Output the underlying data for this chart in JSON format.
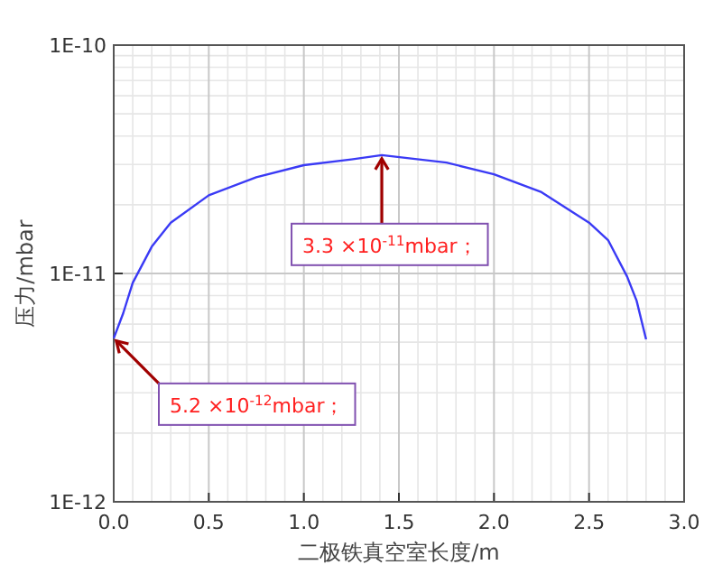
{
  "chart_data": {
    "type": "line",
    "xlabel": "二极铁真空室长度/m",
    "ylabel": "压力/mbar",
    "x": [
      0,
      0.05,
      0.1,
      0.2,
      0.3,
      0.5,
      0.75,
      1.0,
      1.25,
      1.41,
      1.75,
      2.0,
      2.25,
      2.5,
      2.6,
      2.7,
      2.75,
      2.8
    ],
    "values": [
      5.2e-12,
      6.7e-12,
      9.1e-12,
      1.31e-11,
      1.67e-11,
      2.2e-11,
      2.64e-11,
      2.98e-11,
      3.16e-11,
      3.3e-11,
      3.06e-11,
      2.72e-11,
      2.27e-11,
      1.67e-11,
      1.4e-11,
      9.7e-12,
      7.6e-12,
      5.15e-12
    ],
    "color": "#3a3af5",
    "xlim": [
      0,
      3
    ],
    "ylim": [
      1e-12,
      1e-10
    ],
    "xticks": [
      {
        "value": 0,
        "label": "0.0"
      },
      0.5,
      {
        "value": 1,
        "label": "1.0"
      },
      1.5,
      {
        "value": 2,
        "label": "2.0"
      },
      2.5,
      {
        "value": 3,
        "label": "3.0"
      }
    ],
    "yticks": [
      {
        "value": 1e-12,
        "label": "1E-12"
      },
      {
        "value": 1e-11,
        "label": "1E-11"
      },
      {
        "value": 1e-10,
        "label": "1E-10"
      }
    ],
    "log": true,
    "grid": true,
    "annotations": [
      {
        "text": "3.3 ×10$^{-11}$mbar；",
        "x": 1.41,
        "y": 3.3e-11
      },
      {
        "text": "5.2 ×10$^{-12}$mbar；",
        "x": 0,
        "y": 5.2e-12
      }
    ]
  }
}
